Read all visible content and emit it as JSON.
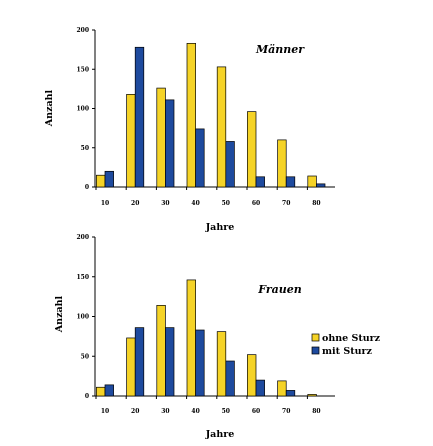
{
  "chart_data": [
    {
      "type": "bar",
      "title": "Männer",
      "xlabel": "Jahre",
      "ylabel": "Anzahl",
      "ylim": [
        0,
        200
      ],
      "yticks": [
        "0",
        "50",
        "100",
        "150",
        "200"
      ],
      "categories": [
        "10",
        "20",
        "30",
        "40",
        "50",
        "60",
        "70",
        "80"
      ],
      "series": [
        {
          "name": "ohne Sturz",
          "color": "#F5D327",
          "values": [
            15,
            118,
            126,
            183,
            153,
            96,
            60,
            14
          ]
        },
        {
          "name": "mit Sturz",
          "color": "#1E4A9E",
          "values": [
            20,
            178,
            111,
            74,
            58,
            13,
            13,
            4
          ]
        }
      ],
      "grid": false,
      "legend": "none"
    },
    {
      "type": "bar",
      "title": "Frauen",
      "xlabel": "Jahre",
      "ylabel": "Anzahl",
      "ylim": [
        0,
        200
      ],
      "yticks": [
        "0",
        "50",
        "100",
        "150",
        "200"
      ],
      "categories": [
        "10",
        "20",
        "30",
        "40",
        "50",
        "60",
        "70",
        "80"
      ],
      "series": [
        {
          "name": "ohne Sturz",
          "color": "#F5D327",
          "values": [
            11,
            73,
            114,
            146,
            81,
            52,
            19,
            2
          ]
        },
        {
          "name": "mit Sturz",
          "color": "#1E4A9E",
          "values": [
            14,
            86,
            86,
            83,
            44,
            20,
            7,
            0
          ]
        }
      ],
      "grid": false,
      "legend": "right"
    }
  ]
}
